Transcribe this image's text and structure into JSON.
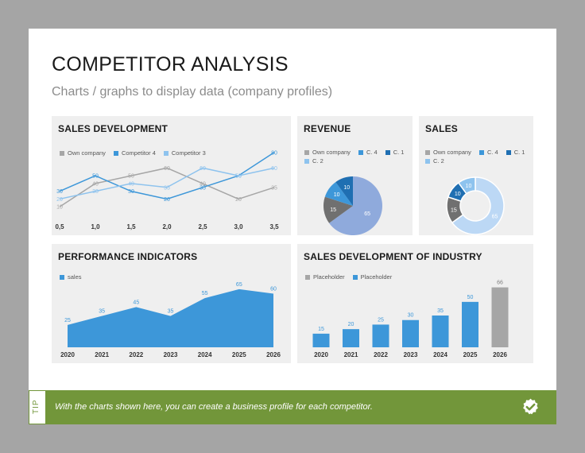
{
  "slide": {
    "title": "COMPETITOR ANALYSIS",
    "subtitle": "Charts / graphs to display data (company profiles)"
  },
  "tip": {
    "label": "TIP",
    "text": "With the charts shown here, you can create a business profile for each competitor.",
    "icon": "check-badge-icon"
  },
  "colors": {
    "gray": "#a6a6a6",
    "dark_blue": "#1f6fb2",
    "mid_blue": "#3d97d9",
    "light_blue": "#8ec3ee",
    "slate": "#707070",
    "accent_green": "#72963a"
  },
  "chart_data": [
    {
      "id": "sales_development",
      "type": "line",
      "title": "SALES DEVELOPMENT",
      "x": [
        0.5,
        1.0,
        1.5,
        2.0,
        2.5,
        3.0,
        3.5
      ],
      "x_tick_labels": [
        "0,5",
        "1,0",
        "1,5",
        "2,0",
        "2,5",
        "3,0",
        "3,5"
      ],
      "series": [
        {
          "name": "Own company",
          "color": "#a6a6a6",
          "values": [
            10,
            40,
            50,
            60,
            40,
            20,
            35
          ]
        },
        {
          "name": "Competitor  4",
          "color": "#3d97d9",
          "values": [
            30,
            50,
            30,
            20,
            35,
            50,
            80
          ]
        },
        {
          "name": "Competitor  3",
          "color": "#8ec3ee",
          "values": [
            20,
            30,
            40,
            35,
            60,
            50,
            60
          ]
        }
      ],
      "ylim": [
        0,
        90
      ],
      "legend": "top-left"
    },
    {
      "id": "revenue",
      "type": "pie",
      "title": "REVENUE",
      "slices": [
        {
          "name": "C. 2",
          "value": 65,
          "color": "#8faadc"
        },
        {
          "name": "Own company",
          "value": 15,
          "color": "#707070"
        },
        {
          "name": "C. 4",
          "value": 10,
          "color": "#3d97d9"
        },
        {
          "name": "C. 1",
          "value": 10,
          "color": "#1f6fb2"
        }
      ],
      "legend_order": [
        "Own company",
        "C. 4",
        "C. 1",
        "C. 2"
      ],
      "legend_colors": [
        "#a6a6a6",
        "#3d97d9",
        "#1f6fb2",
        "#8ec3ee"
      ]
    },
    {
      "id": "sales",
      "type": "pie",
      "donut": true,
      "title": "SALES",
      "slices": [
        {
          "name": "C. 2",
          "value": 65,
          "color": "#bcd8f5"
        },
        {
          "name": "Own company",
          "value": 15,
          "color": "#707070"
        },
        {
          "name": "C. 1",
          "value": 10,
          "color": "#1f6fb2"
        },
        {
          "name": "C. 4",
          "value": 10,
          "color": "#8ec3ee"
        }
      ],
      "legend_order": [
        "Own company",
        "C. 4",
        "C. 1",
        "C. 2"
      ],
      "legend_colors": [
        "#a6a6a6",
        "#3d97d9",
        "#1f6fb2",
        "#8ec3ee"
      ]
    },
    {
      "id": "performance_indicators",
      "type": "area",
      "title": "PERFORMANCE INDICATORS",
      "categories": [
        "2020",
        "2021",
        "2022",
        "2023",
        "2024",
        "2025",
        "2026"
      ],
      "series": [
        {
          "name": "sales",
          "color": "#3d97d9",
          "values": [
            25,
            35,
            45,
            35,
            55,
            65,
            60
          ]
        }
      ],
      "ylim": [
        0,
        80
      ],
      "legend": "top-left"
    },
    {
      "id": "industry_sales_development",
      "type": "bar",
      "title": "SALES DEVELOPMENT OF INDUSTRY",
      "categories": [
        "2020",
        "2021",
        "2022",
        "2023",
        "2024",
        "2025",
        "2026"
      ],
      "values": [
        15,
        20,
        25,
        30,
        35,
        50,
        66
      ],
      "bar_colors": [
        "#3d97d9",
        "#3d97d9",
        "#3d97d9",
        "#3d97d9",
        "#3d97d9",
        "#3d97d9",
        "#a6a6a6"
      ],
      "series": [
        {
          "name": "Placeholder",
          "color": "#a6a6a6"
        },
        {
          "name": "Placeholder",
          "color": "#3d97d9"
        }
      ],
      "ylim": [
        0,
        70
      ],
      "legend": "top-left"
    }
  ]
}
